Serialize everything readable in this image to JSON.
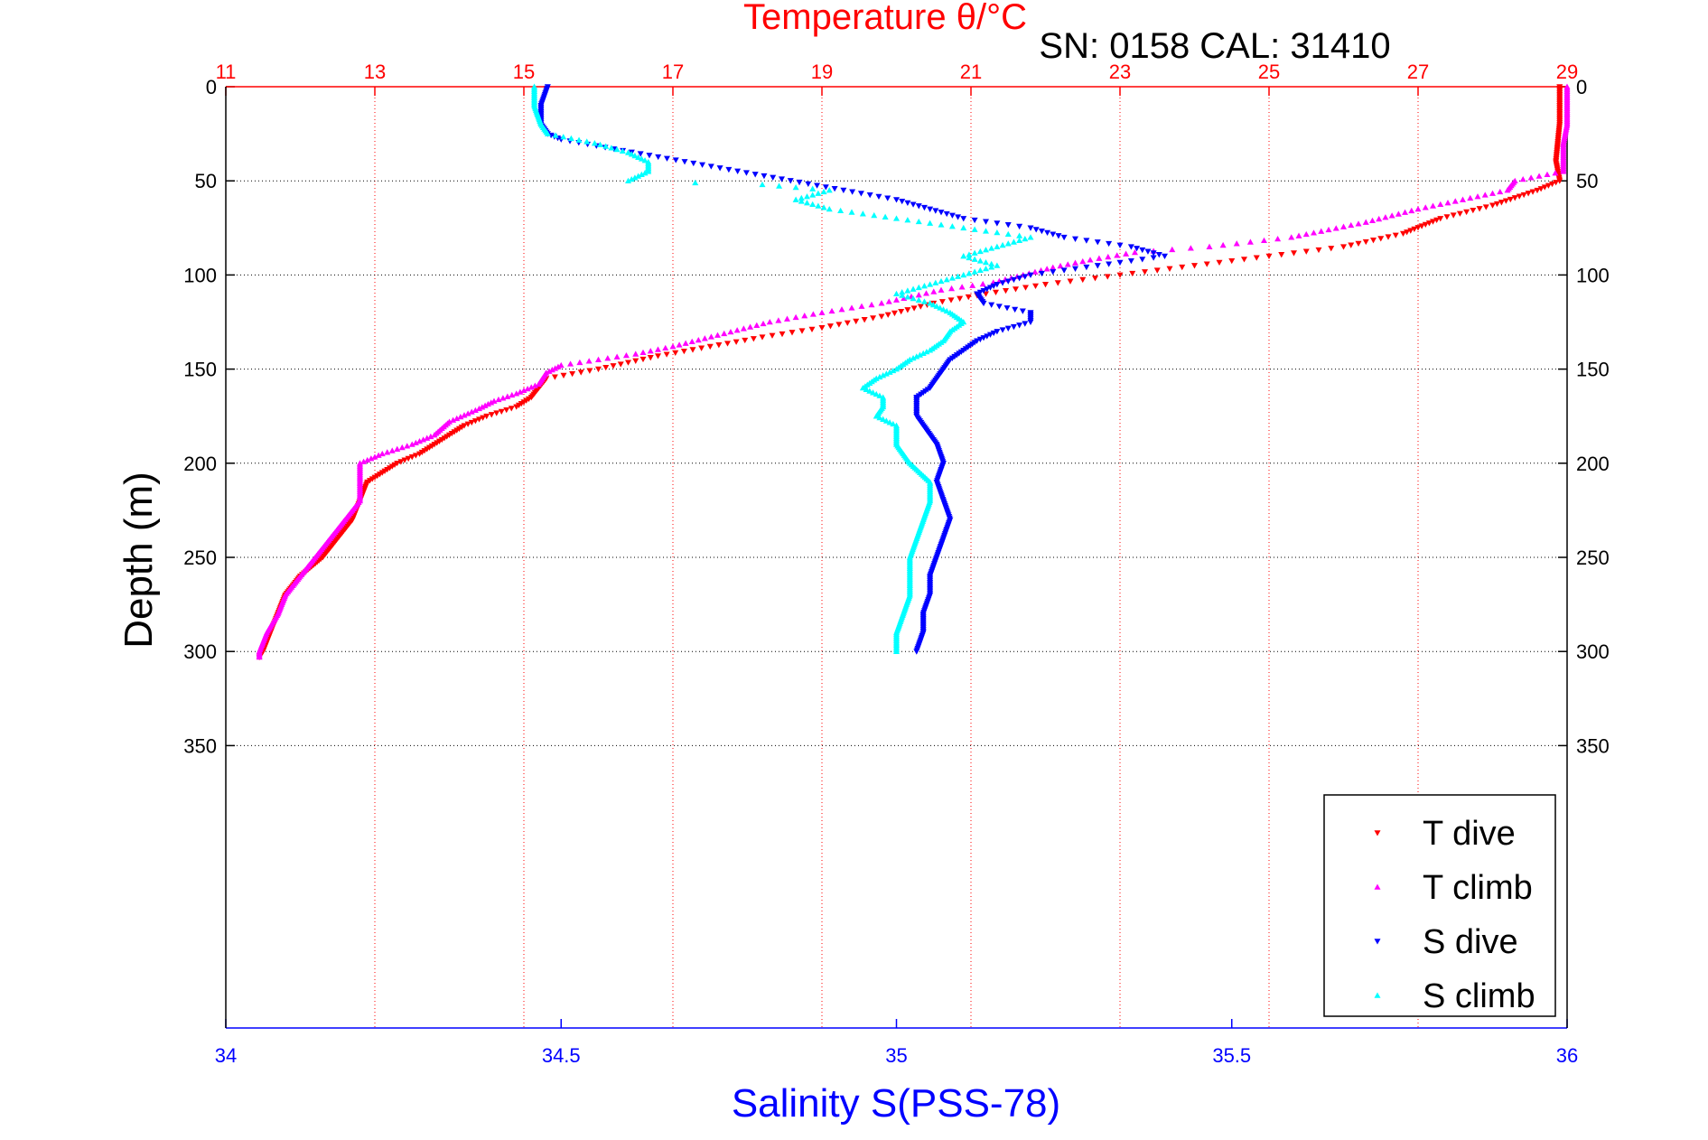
{
  "chart_data": {
    "type": "scatter",
    "title": "Temperature θ/°C",
    "annotation": "SN: 0158  CAL: 31410",
    "xlabel_top": "Temperature θ/°C",
    "xlabel_bottom": "Salinity S(PSS-78)",
    "ylabel": "Depth (m)",
    "temperature_axis": {
      "range": [
        11,
        29
      ],
      "ticks": [
        "11",
        "13",
        "15",
        "17",
        "19",
        "21",
        "23",
        "25",
        "27",
        "29"
      ]
    },
    "salinity_axis": {
      "range": [
        34,
        36
      ],
      "ticks": [
        "34",
        "34.5",
        "35",
        "35.5",
        "36"
      ]
    },
    "depth_axis": {
      "range": [
        0,
        500
      ],
      "reversed": true,
      "ticks": [
        "0",
        "50",
        "100",
        "150",
        "200",
        "250",
        "300",
        "350"
      ]
    },
    "grid": true,
    "legend_position": "bottom-right",
    "series": [
      {
        "name": "T dive",
        "axis": "temperature",
        "color": "#ff0000",
        "marker": "triangle-down",
        "points": [
          [
            28.9,
            0
          ],
          [
            28.9,
            20
          ],
          [
            28.85,
            40
          ],
          [
            28.9,
            50
          ],
          [
            28.6,
            55
          ],
          [
            28.0,
            63
          ],
          [
            27.3,
            70
          ],
          [
            26.8,
            78
          ],
          [
            26.0,
            85
          ],
          [
            25.0,
            90
          ],
          [
            24.0,
            95
          ],
          [
            23.0,
            100
          ],
          [
            22.0,
            105
          ],
          [
            21.2,
            110
          ],
          [
            20.5,
            115
          ],
          [
            19.8,
            122
          ],
          [
            19.0,
            128
          ],
          [
            18.2,
            133
          ],
          [
            17.5,
            138
          ],
          [
            16.8,
            143
          ],
          [
            16.0,
            150
          ],
          [
            15.3,
            155
          ],
          [
            15.2,
            160
          ],
          [
            15.1,
            165
          ],
          [
            14.9,
            170
          ],
          [
            14.5,
            175
          ],
          [
            14.2,
            180
          ],
          [
            14.0,
            185
          ],
          [
            13.8,
            190
          ],
          [
            13.6,
            195
          ],
          [
            13.3,
            200
          ],
          [
            13.1,
            205
          ],
          [
            12.9,
            210
          ],
          [
            12.8,
            220
          ],
          [
            12.7,
            230
          ],
          [
            12.5,
            240
          ],
          [
            12.3,
            250
          ],
          [
            12.0,
            260
          ],
          [
            11.8,
            270
          ],
          [
            11.7,
            280
          ],
          [
            11.6,
            290
          ],
          [
            11.5,
            300
          ],
          [
            11.45,
            303
          ]
        ]
      },
      {
        "name": "T climb",
        "axis": "temperature",
        "color": "#ff00ff",
        "marker": "triangle-up",
        "points": [
          [
            29.0,
            0
          ],
          [
            29.0,
            10
          ],
          [
            29.0,
            20
          ],
          [
            28.95,
            30
          ],
          [
            28.95,
            45
          ],
          [
            28.3,
            50
          ],
          [
            28.2,
            55
          ],
          [
            27.6,
            60
          ],
          [
            27.0,
            65
          ],
          [
            26.3,
            72
          ],
          [
            25.3,
            80
          ],
          [
            24.2,
            85
          ],
          [
            23.2,
            88
          ],
          [
            22.6,
            92
          ],
          [
            22.1,
            96
          ],
          [
            21.7,
            100
          ],
          [
            21.3,
            104
          ],
          [
            20.6,
            108
          ],
          [
            19.8,
            115
          ],
          [
            19.0,
            120
          ],
          [
            18.3,
            125
          ],
          [
            17.6,
            132
          ],
          [
            17.0,
            138
          ],
          [
            16.5,
            142
          ],
          [
            16.0,
            145
          ],
          [
            15.5,
            148
          ],
          [
            15.3,
            152
          ],
          [
            15.2,
            158
          ],
          [
            14.9,
            163
          ],
          [
            14.6,
            167
          ],
          [
            14.4,
            171
          ],
          [
            14.0,
            178
          ],
          [
            13.8,
            185
          ],
          [
            13.5,
            190
          ],
          [
            13.1,
            195
          ],
          [
            12.8,
            200
          ],
          [
            12.8,
            210
          ],
          [
            12.8,
            220
          ],
          [
            12.6,
            230
          ],
          [
            12.4,
            240
          ],
          [
            12.2,
            250
          ],
          [
            12.0,
            260
          ],
          [
            11.8,
            270
          ],
          [
            11.7,
            280
          ],
          [
            11.55,
            290
          ],
          [
            11.45,
            300
          ],
          [
            11.45,
            303
          ]
        ]
      },
      {
        "name": "S dive",
        "axis": "salinity",
        "color": "#0000ff",
        "marker": "triangle-down",
        "points": [
          [
            34.48,
            0
          ],
          [
            34.47,
            10
          ],
          [
            34.47,
            20
          ],
          [
            34.48,
            25
          ],
          [
            34.5,
            28
          ],
          [
            35.0,
            60
          ],
          [
            35.1,
            70
          ],
          [
            35.2,
            75
          ],
          [
            35.25,
            80
          ],
          [
            35.35,
            85
          ],
          [
            35.4,
            90
          ],
          [
            35.3,
            95
          ],
          [
            35.2,
            100
          ],
          [
            35.15,
            105
          ],
          [
            35.12,
            110
          ],
          [
            35.13,
            115
          ],
          [
            35.2,
            120
          ],
          [
            35.2,
            125
          ],
          [
            35.15,
            130
          ],
          [
            35.12,
            135
          ],
          [
            35.1,
            140
          ],
          [
            35.08,
            145
          ],
          [
            35.07,
            150
          ],
          [
            35.06,
            155
          ],
          [
            35.05,
            160
          ],
          [
            35.03,
            165
          ],
          [
            35.03,
            170
          ],
          [
            35.03,
            175
          ],
          [
            35.04,
            180
          ],
          [
            35.05,
            185
          ],
          [
            35.06,
            190
          ],
          [
            35.07,
            200
          ],
          [
            35.06,
            210
          ],
          [
            35.07,
            220
          ],
          [
            35.08,
            230
          ],
          [
            35.07,
            240
          ],
          [
            35.06,
            250
          ],
          [
            35.05,
            260
          ],
          [
            35.05,
            270
          ],
          [
            35.04,
            280
          ],
          [
            35.04,
            290
          ],
          [
            35.03,
            300
          ]
        ]
      },
      {
        "name": "S climb",
        "axis": "salinity",
        "color": "#00ffff",
        "marker": "triangle-up",
        "points": [
          [
            34.46,
            0
          ],
          [
            34.46,
            10
          ],
          [
            34.47,
            20
          ],
          [
            34.48,
            25
          ],
          [
            34.55,
            30
          ],
          [
            34.6,
            35
          ],
          [
            34.63,
            40
          ],
          [
            34.63,
            45
          ],
          [
            34.6,
            50
          ],
          [
            34.8,
            52
          ],
          [
            34.9,
            55
          ],
          [
            34.85,
            60
          ],
          [
            34.9,
            65
          ],
          [
            35.0,
            70
          ],
          [
            35.1,
            75
          ],
          [
            35.2,
            80
          ],
          [
            35.15,
            85
          ],
          [
            35.1,
            90
          ],
          [
            35.15,
            95
          ],
          [
            35.1,
            100
          ],
          [
            35.05,
            105
          ],
          [
            35.0,
            110
          ],
          [
            35.05,
            115
          ],
          [
            35.08,
            120
          ],
          [
            35.1,
            125
          ],
          [
            35.08,
            130
          ],
          [
            35.07,
            135
          ],
          [
            35.05,
            140
          ],
          [
            35.02,
            145
          ],
          [
            35.0,
            150
          ],
          [
            34.97,
            155
          ],
          [
            34.95,
            160
          ],
          [
            34.98,
            165
          ],
          [
            34.98,
            170
          ],
          [
            34.97,
            175
          ],
          [
            35.0,
            180
          ],
          [
            35.0,
            190
          ],
          [
            35.02,
            200
          ],
          [
            35.05,
            210
          ],
          [
            35.05,
            220
          ],
          [
            35.04,
            230
          ],
          [
            35.03,
            240
          ],
          [
            35.02,
            250
          ],
          [
            35.02,
            260
          ],
          [
            35.02,
            270
          ],
          [
            35.01,
            280
          ],
          [
            35.0,
            290
          ],
          [
            35.0,
            300
          ]
        ]
      }
    ]
  }
}
